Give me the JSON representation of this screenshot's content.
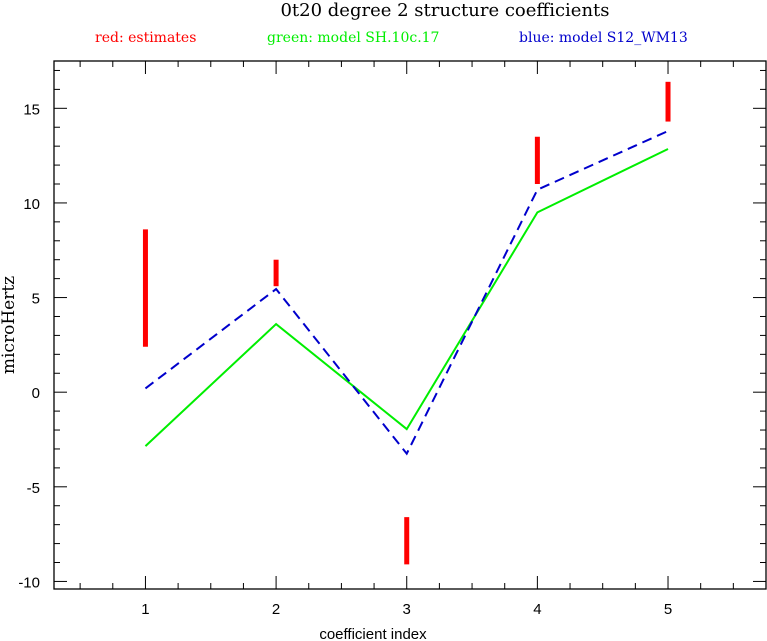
{
  "chart_data": {
    "type": "line",
    "title": "0t20 degree 2 structure coefficients",
    "legend": [
      {
        "text": "red: estimates",
        "color": "#ff0000"
      },
      {
        "text": "green: model SH.10c.17",
        "color": "#00ee00"
      },
      {
        "text": "blue: model S12_WM13",
        "color": "#0000cc"
      }
    ],
    "xlabel": "coefficient index",
    "ylabel": "microHertz",
    "xlim": [
      0.3,
      5.75
    ],
    "ylim": [
      -10.4,
      17.5
    ],
    "xticks": [
      1,
      2,
      3,
      4,
      5
    ],
    "yticks": [
      -10,
      -5,
      0,
      5,
      10,
      15
    ],
    "x": [
      1,
      2,
      3,
      4,
      5
    ],
    "series": [
      {
        "name": "model SH.10c.17",
        "color": "#00ee00",
        "style": "solid",
        "values": [
          -2.85,
          3.6,
          -1.95,
          9.5,
          12.85
        ]
      },
      {
        "name": "model S12_WM13",
        "color": "#0000cc",
        "style": "dashed",
        "values": [
          0.2,
          5.45,
          -3.25,
          10.7,
          13.8
        ]
      }
    ],
    "error_bars": {
      "name": "estimates",
      "color": "#ff0000",
      "ranges": [
        [
          2.4,
          8.6
        ],
        [
          5.6,
          7.0
        ],
        [
          -9.1,
          -6.6
        ],
        [
          11.0,
          13.5
        ],
        [
          14.3,
          16.4
        ]
      ]
    }
  }
}
